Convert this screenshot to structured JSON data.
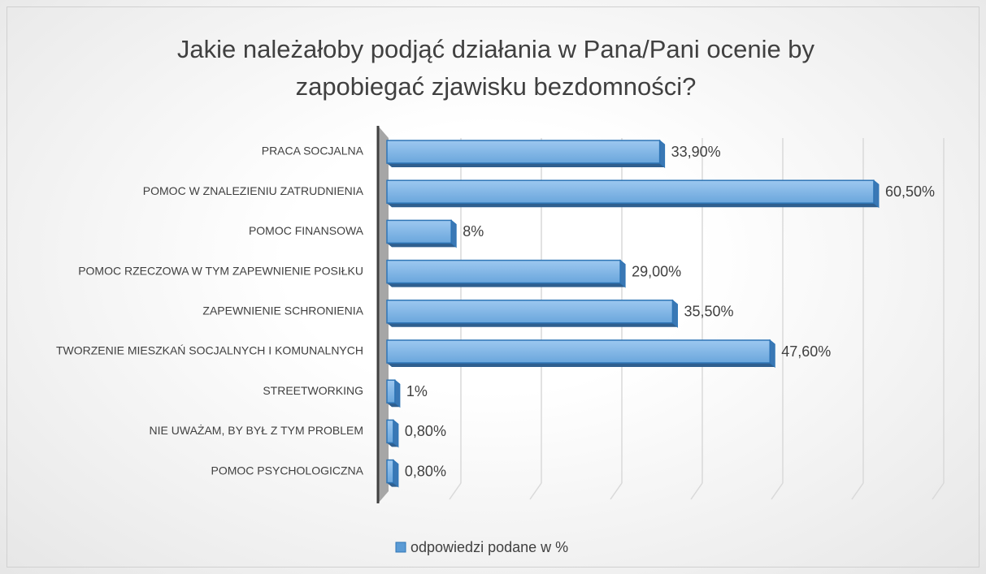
{
  "chart_data": {
    "type": "bar3d_horizontal",
    "title": "Jakie należałoby podjąć działania w Pana/Pani ocenie by zapobiegać zjawisku bezdomności?",
    "categories": [
      "PRACA SOCJALNA",
      "POMOC W ZNALEZIENIU ZATRUDNIENIA",
      "POMOC FINANSOWA",
      "POMOC RZECZOWA W TYM ZAPEWNIENIE POSIŁKU",
      "ZAPEWNIENIE SCHRONIENIA",
      "TWORZENIE MIESZKAŃ SOCJALNYCH I KOMUNALNYCH",
      "STREETWORKING",
      "NIE UWAŻAM, BY BYŁ Z TYM PROBLEM",
      "POMOC PSYCHOLOGICZNA"
    ],
    "series": [
      {
        "name": "odpowiedzi podane w %",
        "color": "#5b9bd5",
        "values": [
          33.9,
          60.5,
          8,
          29,
          35.5,
          47.6,
          1,
          0.8,
          0.8
        ],
        "value_labels": [
          "33,90%",
          "60,50%",
          "8%",
          "29,00%",
          "35,50%",
          "47,60%",
          "1%",
          "0,80%",
          "0,80%"
        ]
      }
    ],
    "xlim": [
      0,
      70
    ],
    "xticks": [
      0,
      10,
      20,
      30,
      40,
      50,
      60,
      70
    ],
    "grid": true,
    "legend": "bottom"
  }
}
